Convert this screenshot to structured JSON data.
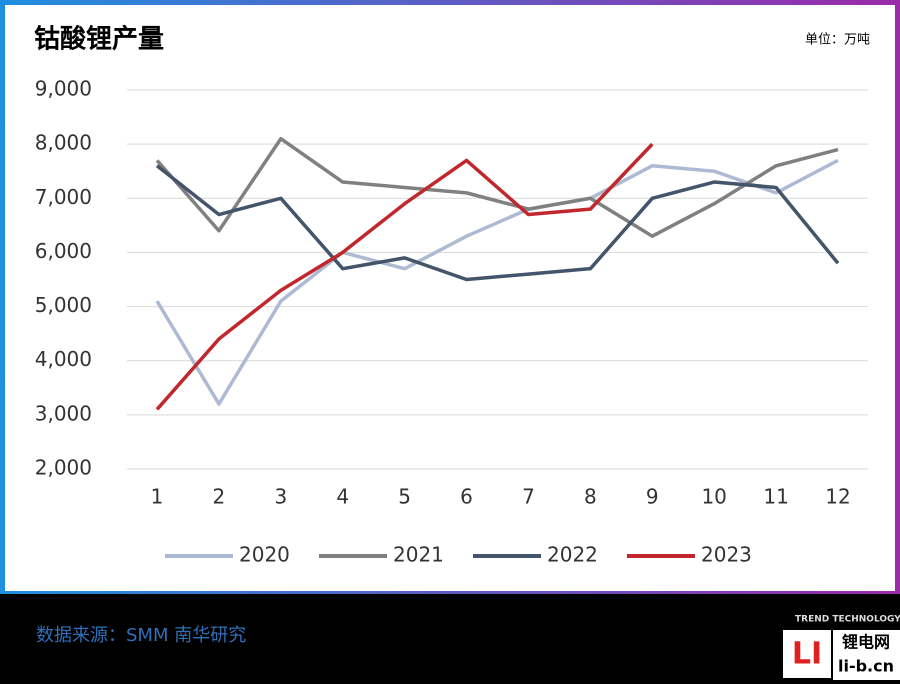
{
  "chart_data": {
    "type": "line",
    "title": "钴酸锂产量",
    "unit_label": "单位：万吨",
    "categories": [
      "1",
      "2",
      "3",
      "4",
      "5",
      "6",
      "7",
      "8",
      "9",
      "10",
      "11",
      "12"
    ],
    "series": [
      {
        "name": "2020",
        "color": "#adbad3",
        "values": [
          5100,
          3200,
          5100,
          6000,
          5700,
          6300,
          6800,
          7000,
          7600,
          7500,
          7100,
          7700
        ]
      },
      {
        "name": "2021",
        "color": "#808080",
        "values": [
          7700,
          6400,
          8100,
          7300,
          7200,
          7100,
          6800,
          7000,
          6300,
          6900,
          7600,
          7900
        ]
      },
      {
        "name": "2022",
        "color": "#44546a",
        "values": [
          7600,
          6700,
          7000,
          5700,
          5900,
          5500,
          5600,
          5700,
          7000,
          7300,
          7200,
          5800
        ]
      },
      {
        "name": "2023",
        "color": "#c0282d",
        "values": [
          3100,
          4400,
          5300,
          6000,
          6900,
          7700,
          6700,
          6800,
          8000,
          null,
          null,
          null
        ]
      }
    ],
    "ylim": [
      2000,
      9000
    ],
    "yticks": [
      {
        "value": 2000,
        "label": "2,000"
      },
      {
        "value": 3000,
        "label": "3,000"
      },
      {
        "value": 4000,
        "label": "4,000"
      },
      {
        "value": 5000,
        "label": "5,000"
      },
      {
        "value": 6000,
        "label": "6,000"
      },
      {
        "value": 7000,
        "label": "7,000"
      },
      {
        "value": 8000,
        "label": "8,000"
      },
      {
        "value": 9000,
        "label": "9,000"
      }
    ],
    "grid": true,
    "legend": "bottom"
  },
  "footer": {
    "source": "数据来源：SMM 南华研究",
    "brand": "TREND TECHNOLOGY",
    "logo_text": "锂电网",
    "logo_url": "li-b.cn"
  }
}
